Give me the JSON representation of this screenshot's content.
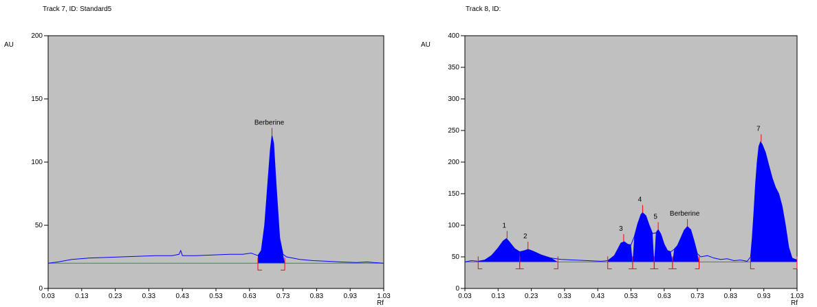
{
  "chart_data": [
    {
      "type": "area",
      "title": "Track 7, ID: Standard5",
      "ylabel": "AU",
      "xlabel": "Rf",
      "xlim": [
        0.03,
        1.03
      ],
      "ylim": [
        0,
        200
      ],
      "xticks": [
        "0.03",
        "0.13",
        "0.23",
        "0.33",
        "0.43",
        "0.53",
        "0.63",
        "0.73",
        "0.83",
        "0.93",
        "1.03"
      ],
      "yticks": [
        "0",
        "50",
        "100",
        "150",
        "200"
      ],
      "baseline": 20,
      "plot_bg": "#c0c0c0",
      "fill_color": "#0000ff",
      "trace_color": "#0000ff",
      "baseline_color": "#2e8b57",
      "marker_color": "#ff0000",
      "trace": [
        [
          0.03,
          20
        ],
        [
          0.06,
          21
        ],
        [
          0.1,
          23
        ],
        [
          0.15,
          24
        ],
        [
          0.2,
          24.5
        ],
        [
          0.25,
          25
        ],
        [
          0.3,
          25.5
        ],
        [
          0.35,
          26
        ],
        [
          0.4,
          26
        ],
        [
          0.42,
          27
        ],
        [
          0.425,
          30
        ],
        [
          0.43,
          26
        ],
        [
          0.47,
          26
        ],
        [
          0.52,
          26.5
        ],
        [
          0.57,
          27
        ],
        [
          0.61,
          27
        ],
        [
          0.635,
          28
        ],
        [
          0.655,
          26
        ],
        [
          0.665,
          30
        ],
        [
          0.675,
          50
        ],
        [
          0.685,
          85
        ],
        [
          0.692,
          110
        ],
        [
          0.697,
          121
        ],
        [
          0.702,
          115
        ],
        [
          0.71,
          80
        ],
        [
          0.72,
          40
        ],
        [
          0.73,
          27
        ],
        [
          0.74,
          25
        ],
        [
          0.78,
          23
        ],
        [
          0.82,
          22
        ],
        [
          0.86,
          21.5
        ],
        [
          0.9,
          21
        ],
        [
          0.95,
          20.5
        ],
        [
          0.98,
          21
        ],
        [
          1.0,
          20.5
        ],
        [
          1.03,
          20
        ]
      ],
      "peaks": [
        {
          "label": "Berberine",
          "x": 0.697,
          "y": 121,
          "start": 0.655,
          "end": 0.735
        }
      ]
    },
    {
      "type": "area",
      "title": "Track 8, ID:",
      "ylabel": "AU",
      "xlabel": "Rf",
      "xlim": [
        0.03,
        1.03
      ],
      "ylim": [
        0,
        400
      ],
      "xticks": [
        "0.03",
        "0.13",
        "0.23",
        "0.33",
        "0.43",
        "0.53",
        "0.63",
        "0.73",
        "0.83",
        "0.93",
        "1.03"
      ],
      "yticks": [
        "0",
        "50",
        "100",
        "150",
        "200",
        "250",
        "300",
        "350",
        "400"
      ],
      "baseline": 42,
      "plot_bg": "#c0c0c0",
      "fill_color": "#0000ff",
      "trace_color": "#0000ff",
      "baseline_color": "#2e8b57",
      "marker_color": "#ff0000",
      "trace": [
        [
          0.03,
          42
        ],
        [
          0.05,
          44
        ],
        [
          0.07,
          43
        ],
        [
          0.09,
          45
        ],
        [
          0.11,
          52
        ],
        [
          0.13,
          64
        ],
        [
          0.145,
          75
        ],
        [
          0.155,
          79
        ],
        [
          0.165,
          73
        ],
        [
          0.18,
          63
        ],
        [
          0.195,
          58
        ],
        [
          0.21,
          60
        ],
        [
          0.22,
          62
        ],
        [
          0.235,
          59
        ],
        [
          0.26,
          53
        ],
        [
          0.29,
          48
        ],
        [
          0.32,
          46
        ],
        [
          0.36,
          45
        ],
        [
          0.4,
          44
        ],
        [
          0.44,
          43
        ],
        [
          0.46,
          44
        ],
        [
          0.48,
          52
        ],
        [
          0.49,
          62
        ],
        [
          0.5,
          72
        ],
        [
          0.51,
          74
        ],
        [
          0.52,
          70
        ],
        [
          0.53,
          69
        ],
        [
          0.54,
          82
        ],
        [
          0.55,
          102
        ],
        [
          0.56,
          117
        ],
        [
          0.565,
          120
        ],
        [
          0.575,
          115
        ],
        [
          0.585,
          100
        ],
        [
          0.595,
          87
        ],
        [
          0.605,
          88
        ],
        [
          0.612,
          93
        ],
        [
          0.62,
          86
        ],
        [
          0.63,
          70
        ],
        [
          0.64,
          60
        ],
        [
          0.65,
          58
        ],
        [
          0.66,
          62
        ],
        [
          0.67,
          68
        ],
        [
          0.68,
          80
        ],
        [
          0.69,
          92
        ],
        [
          0.7,
          98
        ],
        [
          0.71,
          93
        ],
        [
          0.72,
          75
        ],
        [
          0.73,
          55
        ],
        [
          0.74,
          50
        ],
        [
          0.76,
          52
        ],
        [
          0.78,
          48
        ],
        [
          0.8,
          46
        ],
        [
          0.82,
          47
        ],
        [
          0.84,
          44
        ],
        [
          0.86,
          45
        ],
        [
          0.88,
          43
        ],
        [
          0.89,
          50
        ],
        [
          0.895,
          80
        ],
        [
          0.9,
          120
        ],
        [
          0.905,
          165
        ],
        [
          0.91,
          200
        ],
        [
          0.915,
          225
        ],
        [
          0.92,
          232
        ],
        [
          0.925,
          228
        ],
        [
          0.935,
          215
        ],
        [
          0.945,
          195
        ],
        [
          0.955,
          175
        ],
        [
          0.965,
          160
        ],
        [
          0.975,
          150
        ],
        [
          0.985,
          130
        ],
        [
          0.995,
          100
        ],
        [
          1.005,
          65
        ],
        [
          1.015,
          48
        ],
        [
          1.03,
          45
        ]
      ],
      "peaks": [
        {
          "label": "1",
          "x": 0.157,
          "y": 79,
          "start": 0.07,
          "end": 0.195
        },
        {
          "label": "2",
          "x": 0.22,
          "y": 62,
          "start": 0.195,
          "end": 0.31
        },
        {
          "label": "3",
          "x": 0.508,
          "y": 74,
          "start": 0.46,
          "end": 0.535
        },
        {
          "label": "4",
          "x": 0.565,
          "y": 120,
          "start": 0.535,
          "end": 0.6
        },
        {
          "label": "5",
          "x": 0.612,
          "y": 93,
          "start": 0.6,
          "end": 0.655
        },
        {
          "label": "Berberine",
          "x": 0.7,
          "y": 98,
          "start": 0.655,
          "end": 0.735
        },
        {
          "label": "7",
          "x": 0.922,
          "y": 232,
          "start": 0.89,
          "end": 1.03
        }
      ]
    }
  ]
}
